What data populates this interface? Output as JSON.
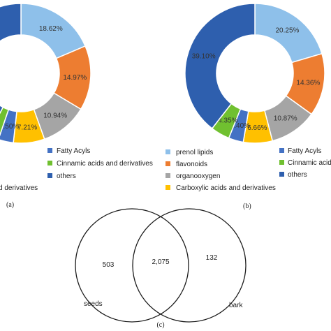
{
  "chart_data": [
    {
      "type": "pie",
      "panel": "(a)",
      "slices": [
        {
          "category": "prenol lipids",
          "label": "18.62%",
          "value": 18.62,
          "color": "#8ec0ea"
        },
        {
          "category": "flavonoids",
          "label": "14.97%",
          "value": 14.97,
          "color": "#ed7d31"
        },
        {
          "category": "organooxygen",
          "label": "10.94%",
          "value": 10.94,
          "color": "#a5a5a5"
        },
        {
          "category": "Carboxylic acids and derivatives",
          "label": "7.21%",
          "value": 7.21,
          "color": "#ffc000"
        },
        {
          "category": "Fatty Acyls",
          "label": "3.50%",
          "value": 3.5,
          "color": "#4472c4"
        },
        {
          "category": "Cinnamic acids and derivatives",
          "label": "",
          "value": 2.5,
          "color": "#70c030"
        },
        {
          "category": "others",
          "label": "",
          "value": 42.26,
          "color": "#2e5fae"
        }
      ],
      "legend": [
        "Fatty Acyls",
        "Cinnamic acids and derivatives",
        "others"
      ],
      "legend_colors": [
        "#4472c4",
        "#70c030",
        "#2e5fae"
      ],
      "legend_partial": "d derivatives"
    },
    {
      "type": "pie",
      "panel": "(b)",
      "slices": [
        {
          "category": "prenol lipids",
          "label": "20.25%",
          "value": 20.25,
          "color": "#8ec0ea"
        },
        {
          "category": "flavonoids",
          "label": "14.36%",
          "value": 14.36,
          "color": "#ed7d31"
        },
        {
          "category": "organooxygen",
          "label": "10.87%",
          "value": 10.87,
          "color": "#a5a5a5"
        },
        {
          "category": "Carboxylic acids and derivatives",
          "label": "6.66%",
          "value": 6.66,
          "color": "#ffc000"
        },
        {
          "category": "Fatty Acyls",
          "label": "3.40%",
          "value": 3.4,
          "color": "#4472c4"
        },
        {
          "category": "Cinnamic acids and derivatives",
          "label": "4.35%",
          "value": 4.35,
          "color": "#70c030"
        },
        {
          "category": "others",
          "label": "39.10%",
          "value": 39.1,
          "color": "#2e5fae"
        }
      ],
      "legend_left": [
        "prenol lipids",
        "flavonoids",
        "organooxygen",
        "Carboxylic acids and derivatives"
      ],
      "legend_left_colors": [
        "#8ec0ea",
        "#ed7d31",
        "#a5a5a5",
        "#ffc000"
      ],
      "legend_right": [
        "Fatty Acyls",
        "Cinnamic acid",
        "others"
      ],
      "legend_right_colors": [
        "#4472c4",
        "#70c030",
        "#2e5fae"
      ]
    },
    {
      "type": "venn",
      "panel": "(c)",
      "sets": [
        "seeds",
        "bark"
      ],
      "only_left": "503",
      "intersection": "2,075",
      "only_right": "132"
    }
  ]
}
